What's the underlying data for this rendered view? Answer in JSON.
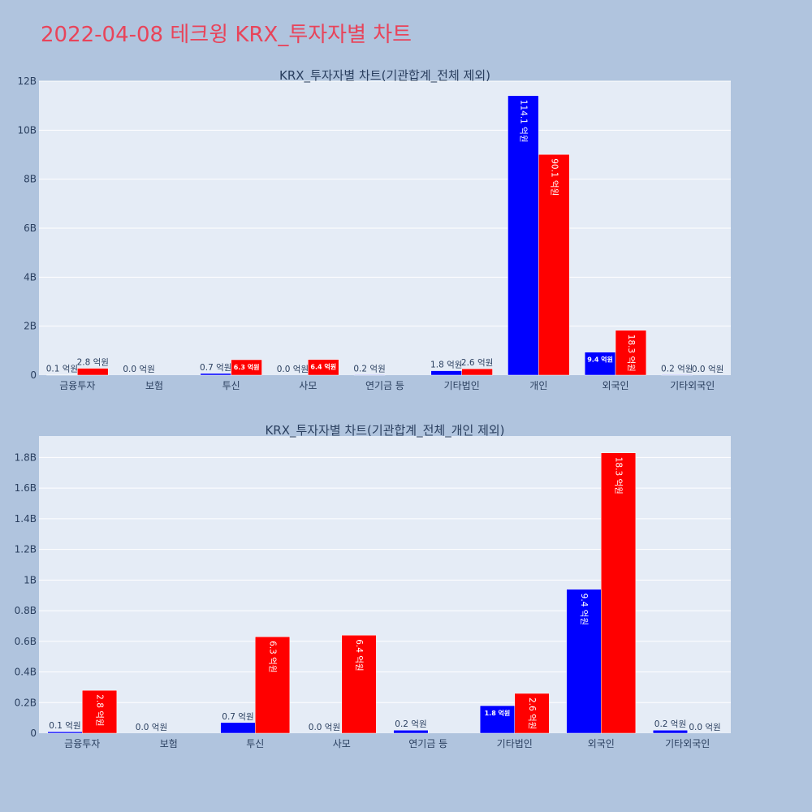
{
  "page": {
    "title": "2022-04-08 테크윙 KRX_투자자별 차트"
  },
  "colors": {
    "background": "#b0c4de",
    "plot_bg": "#e5ecf6",
    "grid": "#ffffff",
    "title": "#e8445a",
    "text": "#2a3f5f",
    "buy": "#0000ff",
    "sell": "#ff0000"
  },
  "chart_data": [
    {
      "type": "bar",
      "title": "KRX_투자자별 차트(기관합계_전체 제외)",
      "categories": [
        "금융투자",
        "보험",
        "투신",
        "사모",
        "연기금 등",
        "기타법인",
        "개인",
        "외국인",
        "기타외국인"
      ],
      "series": [
        {
          "color": "#0000ff",
          "values": [
            10000000,
            0,
            70000000,
            0,
            20000000,
            180000000,
            11410000000,
            940000000,
            20000000
          ],
          "labels": [
            "0.1 억원",
            "0.0 억원",
            "0.7 억원",
            "0.0 억원",
            "0.2 억원",
            "1.8 억원",
            "114.1 억원",
            "9.4 억원",
            "0.2 억원"
          ]
        },
        {
          "color": "#ff0000",
          "values": [
            280000000,
            0,
            630000000,
            640000000,
            0,
            260000000,
            9010000000,
            1830000000,
            0
          ],
          "labels": [
            "2.8 억원",
            "",
            "6.3 억원",
            "6.4 억원",
            "",
            "2.6 억원",
            "90.1 억원",
            "18.3 억원",
            "0.0 억원"
          ]
        }
      ],
      "ylim": [
        0,
        12000000000
      ],
      "yticks": [
        0,
        2000000000,
        4000000000,
        6000000000,
        8000000000,
        10000000000,
        12000000000
      ],
      "ytick_labels": [
        "0",
        "2B",
        "4B",
        "6B",
        "8B",
        "10B",
        "12B"
      ],
      "grid": true
    },
    {
      "type": "bar",
      "title": "KRX_투자자별 차트(기관합계_전체_개인 제외)",
      "categories": [
        "금융투자",
        "보험",
        "투신",
        "사모",
        "연기금 등",
        "기타법인",
        "외국인",
        "기타외국인"
      ],
      "series": [
        {
          "color": "#0000ff",
          "values": [
            10000000,
            0,
            70000000,
            0,
            20000000,
            180000000,
            940000000,
            20000000
          ],
          "labels": [
            "0.1 억원",
            "0.0 억원",
            "0.7 억원",
            "0.0 억원",
            "0.2 억원",
            "1.8 억원",
            "9.4 억원",
            "0.2 억원"
          ]
        },
        {
          "color": "#ff0000",
          "values": [
            280000000,
            0,
            630000000,
            640000000,
            0,
            260000000,
            1830000000,
            0
          ],
          "labels": [
            "2.8 억원",
            "",
            "6.3 억원",
            "6.4 억원",
            "",
            "2.6 억원",
            "18.3 억원",
            "0.0 억원"
          ]
        }
      ],
      "ylim": [
        0,
        1940000000
      ],
      "yticks": [
        0,
        200000000,
        400000000,
        600000000,
        800000000,
        1000000000,
        1200000000,
        1400000000,
        1600000000,
        1800000000
      ],
      "ytick_labels": [
        "0",
        "0.2B",
        "0.4B",
        "0.6B",
        "0.8B",
        "1B",
        "1.2B",
        "1.4B",
        "1.6B",
        "1.8B"
      ],
      "grid": true
    }
  ]
}
